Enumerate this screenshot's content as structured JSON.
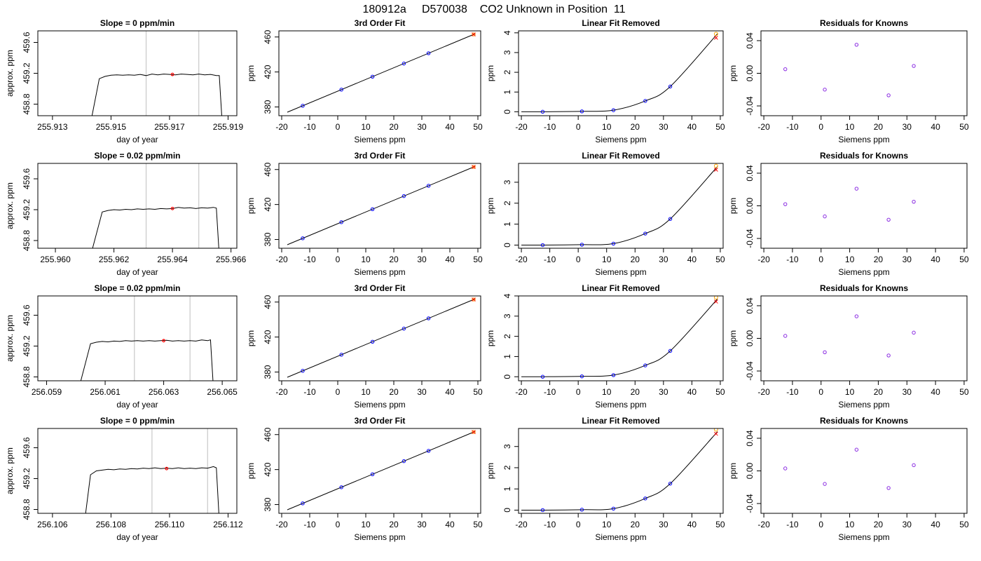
{
  "figure_title": "180912a     D570038    CO2 Unknown in Position  11",
  "colors": {
    "line": "#000000",
    "gridline": "#c8c8c8",
    "known_point": "#0000ff",
    "fit_point": "#ff0000",
    "orange_point": "#ffa500",
    "residual_point": "#8a2be2"
  },
  "chart_data": [
    {
      "type": "line",
      "row": 1,
      "kind": "time",
      "title": "Slope =  0  ppm/min",
      "xlabel": "day of year",
      "ylabel": "approx. ppm",
      "xlim": [
        255.9125,
        255.9193
      ],
      "ylim": [
        458.65,
        459.75
      ],
      "xticks": [
        255.913,
        255.915,
        255.917,
        255.919
      ],
      "xtick_labels": [
        "255.913",
        "255.915",
        "255.917",
        "255.919"
      ],
      "yticks": [
        458.8,
        459.2,
        459.6
      ],
      "ytick_labels": [
        "458.8",
        "459.2",
        "459.6"
      ],
      "vlines": [
        255.9162,
        255.918
      ],
      "level": 459.2,
      "marker": {
        "x": 255.9171,
        "y": 459.185
      },
      "trace": {
        "rise_start": 255.9143,
        "plateau_start": 255.9146,
        "fall_end": 255.9188,
        "points": [
          [
            255.9146,
            459.13
          ],
          [
            255.9148,
            459.16
          ],
          [
            255.915,
            459.175
          ],
          [
            255.9152,
            459.18
          ],
          [
            255.9154,
            459.175
          ],
          [
            255.9156,
            459.18
          ],
          [
            255.9158,
            459.175
          ],
          [
            255.916,
            459.185
          ],
          [
            255.9162,
            459.17
          ],
          [
            255.9164,
            459.19
          ],
          [
            255.9166,
            459.18
          ],
          [
            255.9168,
            459.19
          ],
          [
            255.917,
            459.185
          ],
          [
            255.9172,
            459.18
          ],
          [
            255.9174,
            459.19
          ],
          [
            255.9176,
            459.185
          ],
          [
            255.9178,
            459.18
          ],
          [
            255.918,
            459.19
          ],
          [
            255.9182,
            459.18
          ],
          [
            255.9184,
            459.185
          ],
          [
            255.9186,
            459.17
          ],
          [
            255.9187,
            459.17
          ]
        ]
      }
    },
    {
      "type": "line",
      "row": 2,
      "kind": "time",
      "title": "Slope =  0.02  ppm/min",
      "xlabel": "day of year",
      "ylabel": "approx. ppm",
      "xlim": [
        255.9594,
        255.9662
      ],
      "ylim": [
        458.7,
        459.8
      ],
      "xticks": [
        255.96,
        255.962,
        255.964,
        255.966
      ],
      "xtick_labels": [
        "255.960",
        "255.962",
        "255.964",
        "255.966"
      ],
      "yticks": [
        458.8,
        459.2,
        459.6
      ],
      "ytick_labels": [
        "458.8",
        "459.2",
        "459.6"
      ],
      "vlines": [
        255.9631,
        255.9649
      ],
      "level": 459.21,
      "marker": {
        "x": 255.964,
        "y": 459.215
      },
      "trace": {
        "rise_start": 255.9612,
        "plateau_start": 255.9616,
        "fall_end": 255.9656,
        "points": [
          [
            255.9616,
            459.17
          ],
          [
            255.9618,
            459.19
          ],
          [
            255.962,
            459.2
          ],
          [
            255.9622,
            459.195
          ],
          [
            255.9624,
            459.205
          ],
          [
            255.9626,
            459.2
          ],
          [
            255.9628,
            459.21
          ],
          [
            255.963,
            459.205
          ],
          [
            255.9632,
            459.21
          ],
          [
            255.9634,
            459.205
          ],
          [
            255.9636,
            459.215
          ],
          [
            255.9638,
            459.21
          ],
          [
            255.964,
            459.215
          ],
          [
            255.9642,
            459.23
          ],
          [
            255.9644,
            459.22
          ],
          [
            255.9646,
            459.225
          ],
          [
            255.9648,
            459.215
          ],
          [
            255.965,
            459.225
          ],
          [
            255.9652,
            459.22
          ],
          [
            255.9654,
            459.23
          ],
          [
            255.9655,
            459.22
          ]
        ]
      }
    },
    {
      "type": "line",
      "row": 3,
      "kind": "time",
      "title": "Slope =  0.02  ppm/min",
      "xlabel": "day of year",
      "ylabel": "approx. ppm",
      "xlim": [
        256.0587,
        256.0655
      ],
      "ylim": [
        458.75,
        459.85
      ],
      "xticks": [
        256.059,
        256.061,
        256.063,
        256.065
      ],
      "xtick_labels": [
        "256.059",
        "256.061",
        "256.063",
        "256.065"
      ],
      "yticks": [
        458.8,
        459.2,
        459.6
      ],
      "ytick_labels": [
        "458.8",
        "459.2",
        "459.6"
      ],
      "vlines": [
        256.062,
        256.0639
      ],
      "level": 459.27,
      "marker": {
        "x": 256.063,
        "y": 459.27
      },
      "trace": {
        "rise_start": 256.0601,
        "plateau_start": 256.0605,
        "fall_end": 256.0647,
        "points": [
          [
            256.0605,
            459.23
          ],
          [
            256.0607,
            459.25
          ],
          [
            256.0609,
            459.26
          ],
          [
            256.0611,
            459.255
          ],
          [
            256.0613,
            459.265
          ],
          [
            256.0615,
            459.26
          ],
          [
            256.0617,
            459.27
          ],
          [
            256.0619,
            459.265
          ],
          [
            256.0621,
            459.27
          ],
          [
            256.0623,
            459.265
          ],
          [
            256.0625,
            459.27
          ],
          [
            256.0627,
            459.265
          ],
          [
            256.0629,
            459.27
          ],
          [
            256.0631,
            459.275
          ],
          [
            256.0633,
            459.265
          ],
          [
            256.0635,
            459.27
          ],
          [
            256.0637,
            459.265
          ],
          [
            256.0639,
            459.27
          ],
          [
            256.0641,
            459.265
          ],
          [
            256.0643,
            459.28
          ],
          [
            256.0645,
            459.27
          ],
          [
            256.0646,
            459.28
          ]
        ]
      }
    },
    {
      "type": "line",
      "row": 4,
      "kind": "time",
      "title": "Slope =  0  ppm/min",
      "xlabel": "day of year",
      "ylabel": "approx. ppm",
      "xlim": [
        256.1055,
        256.1123
      ],
      "ylim": [
        458.75,
        459.85
      ],
      "xticks": [
        256.106,
        256.108,
        256.11,
        256.112
      ],
      "xtick_labels": [
        "256.106",
        "256.108",
        "256.110",
        "256.112"
      ],
      "yticks": [
        458.8,
        459.2,
        459.6
      ],
      "ytick_labels": [
        "458.8",
        "459.2",
        "459.6"
      ],
      "vlines": [
        256.1094,
        256.1113
      ],
      "level": 459.34,
      "marker": {
        "x": 256.1099,
        "y": 459.33
      },
      "trace": {
        "rise_start": 256.1071,
        "plateau_start": 256.1073,
        "fall_end": 256.1117,
        "points": [
          [
            256.1073,
            459.25
          ],
          [
            256.1075,
            459.3
          ],
          [
            256.1077,
            459.31
          ],
          [
            256.1079,
            459.32
          ],
          [
            256.1081,
            459.315
          ],
          [
            256.1083,
            459.325
          ],
          [
            256.1085,
            459.32
          ],
          [
            256.1087,
            459.33
          ],
          [
            256.1089,
            459.325
          ],
          [
            256.1091,
            459.335
          ],
          [
            256.1093,
            459.33
          ],
          [
            256.1095,
            459.34
          ],
          [
            256.1097,
            459.33
          ],
          [
            256.1099,
            459.335
          ],
          [
            256.1101,
            459.33
          ],
          [
            256.1103,
            459.34
          ],
          [
            256.1105,
            459.33
          ],
          [
            256.1107,
            459.335
          ],
          [
            256.1109,
            459.33
          ],
          [
            256.1111,
            459.34
          ],
          [
            256.1113,
            459.335
          ],
          [
            256.1115,
            459.355
          ],
          [
            256.1116,
            459.34
          ]
        ]
      }
    },
    {
      "type": "scatter",
      "row": 1,
      "kind": "fit",
      "title": "3rd Order Fit",
      "xlabel": "Siemens ppm",
      "ylabel": "ppm",
      "xlim": [
        -21,
        51
      ],
      "ylim": [
        370,
        467
      ],
      "xticks": [
        -20,
        -10,
        0,
        10,
        20,
        30,
        40,
        50
      ],
      "yticks": [
        380,
        420,
        460
      ],
      "known_x": [
        -12.5,
        1.3,
        12.4,
        23.6,
        32.4
      ],
      "unknown": {
        "x": 48.5
      },
      "fit_line": [
        [
          -18,
          374.0
        ],
        [
          49,
          463.6
        ]
      ]
    },
    {
      "type": "scatter",
      "row": 2,
      "kind": "fit",
      "title": "3rd Order Fit",
      "xlabel": "Siemens ppm",
      "ylabel": "ppm",
      "xlim": [
        -21,
        51
      ],
      "ylim": [
        370,
        467
      ],
      "xticks": [
        -20,
        -10,
        0,
        10,
        20,
        30,
        40,
        50
      ],
      "yticks": [
        380,
        420,
        460
      ],
      "known_x": [
        -12.5,
        1.3,
        12.4,
        23.6,
        32.4
      ],
      "unknown": {
        "x": 48.5
      },
      "fit_line": [
        [
          -18,
          374.0
        ],
        [
          49,
          463.6
        ]
      ]
    },
    {
      "type": "scatter",
      "row": 3,
      "kind": "fit",
      "title": "3rd Order Fit",
      "xlabel": "Siemens ppm",
      "ylabel": "ppm",
      "xlim": [
        -21,
        51
      ],
      "ylim": [
        370,
        467
      ],
      "xticks": [
        -20,
        -10,
        0,
        10,
        20,
        30,
        40,
        50
      ],
      "yticks": [
        380,
        420,
        460
      ],
      "known_x": [
        -12.5,
        1.3,
        12.4,
        23.6,
        32.4
      ],
      "unknown": {
        "x": 48.5
      },
      "fit_line": [
        [
          -18,
          374.0
        ],
        [
          49,
          463.6
        ]
      ]
    },
    {
      "type": "scatter",
      "row": 4,
      "kind": "fit",
      "title": "3rd Order Fit",
      "xlabel": "Siemens ppm",
      "ylabel": "ppm",
      "xlim": [
        -21,
        51
      ],
      "ylim": [
        370,
        467
      ],
      "xticks": [
        -20,
        -10,
        0,
        10,
        20,
        30,
        40,
        50
      ],
      "yticks": [
        380,
        420,
        460
      ],
      "known_x": [
        -12.5,
        1.3,
        12.4,
        23.6,
        32.4
      ],
      "unknown": {
        "x": 48.5
      },
      "fit_line": [
        [
          -18,
          374.0
        ],
        [
          49,
          463.6
        ]
      ]
    },
    {
      "type": "scatter",
      "row": 1,
      "kind": "linear-removed",
      "title": "Linear Fit Removed",
      "xlabel": "Siemens ppm",
      "ylabel": "ppm",
      "xlim": [
        -21,
        51
      ],
      "ylim": [
        -0.2,
        4.1
      ],
      "xticks": [
        -20,
        -10,
        0,
        10,
        20,
        30,
        40,
        50
      ],
      "yticks": [
        0,
        1,
        2,
        3,
        4
      ],
      "known": {
        "x": [
          -12.5,
          1.3,
          12.4,
          23.6,
          32.4
        ],
        "y": [
          0.0,
          0.02,
          0.08,
          0.55,
          1.28
        ]
      },
      "fit_point": {
        "x": 48.5,
        "y": 3.75
      },
      "orange_point": {
        "x": 48.5,
        "y": 3.95
      },
      "curve_end": [
        49,
        3.95
      ]
    },
    {
      "type": "scatter",
      "row": 2,
      "kind": "linear-removed",
      "title": "Linear Fit Removed",
      "xlabel": "Siemens ppm",
      "ylabel": "ppm",
      "xlim": [
        -21,
        51
      ],
      "ylim": [
        -0.15,
        3.9
      ],
      "xticks": [
        -20,
        -10,
        0,
        10,
        20,
        30,
        40,
        50
      ],
      "yticks": [
        0,
        1,
        2,
        3
      ],
      "known": {
        "x": [
          -12.5,
          1.3,
          12.4,
          23.6,
          32.4
        ],
        "y": [
          0.0,
          0.02,
          0.07,
          0.55,
          1.25
        ]
      },
      "fit_point": {
        "x": 48.5,
        "y": 3.6
      },
      "orange_point": {
        "x": 48.5,
        "y": 3.78
      },
      "curve_end": [
        49,
        3.75
      ]
    },
    {
      "type": "scatter",
      "row": 3,
      "kind": "linear-removed",
      "title": "Linear Fit Removed",
      "xlabel": "Siemens ppm",
      "ylabel": "ppm",
      "xlim": [
        -21,
        51
      ],
      "ylim": [
        -0.2,
        4.0
      ],
      "xticks": [
        -20,
        -10,
        0,
        10,
        20,
        30,
        40,
        50
      ],
      "yticks": [
        0,
        1,
        2,
        3,
        4
      ],
      "known": {
        "x": [
          -12.5,
          1.3,
          12.4,
          23.6,
          32.4
        ],
        "y": [
          0.0,
          0.02,
          0.08,
          0.56,
          1.28
        ]
      },
      "fit_point": {
        "x": 48.5,
        "y": 3.72
      },
      "orange_point": {
        "x": 48.5,
        "y": 3.92
      },
      "curve_end": [
        49,
        3.85
      ]
    },
    {
      "type": "scatter",
      "row": 4,
      "kind": "linear-removed",
      "title": "Linear Fit Removed",
      "xlabel": "Siemens ppm",
      "ylabel": "ppm",
      "xlim": [
        -21,
        51
      ],
      "ylim": [
        -0.15,
        3.85
      ],
      "xticks": [
        -20,
        -10,
        0,
        10,
        20,
        30,
        40,
        50
      ],
      "yticks": [
        0,
        1,
        2,
        3
      ],
      "known": {
        "x": [
          -12.5,
          1.3,
          12.4,
          23.6,
          32.4
        ],
        "y": [
          0.0,
          0.02,
          0.07,
          0.55,
          1.25
        ]
      },
      "fit_point": {
        "x": 48.5,
        "y": 3.6
      },
      "orange_point": {
        "x": 48.5,
        "y": 3.8
      },
      "curve_end": [
        49,
        3.7
      ]
    },
    {
      "type": "scatter",
      "row": 1,
      "kind": "residual",
      "title": "Residuals for Knowns",
      "xlabel": "Siemens ppm",
      "ylabel": "ppm",
      "xlim": [
        -21,
        51
      ],
      "ylim": [
        -0.052,
        0.052
      ],
      "xticks": [
        -20,
        -10,
        0,
        10,
        20,
        30,
        40,
        50
      ],
      "yticks": [
        -0.04,
        0.0,
        0.04
      ],
      "ytick_labels": [
        "-0.04",
        "0.00",
        "0.04"
      ],
      "x": [
        -12.5,
        1.3,
        12.4,
        23.6,
        32.4
      ],
      "y": [
        0.005,
        -0.02,
        0.035,
        -0.027,
        0.009
      ]
    },
    {
      "type": "scatter",
      "row": 2,
      "kind": "residual",
      "title": "Residuals for Knowns",
      "xlabel": "Siemens ppm",
      "ylabel": "ppm",
      "xlim": [
        -21,
        51
      ],
      "ylim": [
        -0.052,
        0.052
      ],
      "xticks": [
        -20,
        -10,
        0,
        10,
        20,
        30,
        40,
        50
      ],
      "yticks": [
        -0.04,
        0.0,
        0.04
      ],
      "ytick_labels": [
        "-0.04",
        "0.00",
        "0.04"
      ],
      "x": [
        -12.5,
        1.3,
        12.4,
        23.6,
        32.4
      ],
      "y": [
        0.002,
        -0.013,
        0.021,
        -0.017,
        0.005
      ]
    },
    {
      "type": "scatter",
      "row": 3,
      "kind": "residual",
      "title": "Residuals for Knowns",
      "xlabel": "Siemens ppm",
      "ylabel": "ppm",
      "xlim": [
        -21,
        51
      ],
      "ylim": [
        -0.052,
        0.052
      ],
      "xticks": [
        -20,
        -10,
        0,
        10,
        20,
        30,
        40,
        50
      ],
      "yticks": [
        -0.04,
        0.0,
        0.04
      ],
      "ytick_labels": [
        "-0.04",
        "0.00",
        "0.04"
      ],
      "x": [
        -12.5,
        1.3,
        12.4,
        23.6,
        32.4
      ],
      "y": [
        0.003,
        -0.017,
        0.027,
        -0.021,
        0.007
      ]
    },
    {
      "type": "scatter",
      "row": 4,
      "kind": "residual",
      "title": "Residuals for Knowns",
      "xlabel": "Siemens ppm",
      "ylabel": "ppm",
      "xlim": [
        -21,
        51
      ],
      "ylim": [
        -0.052,
        0.052
      ],
      "xticks": [
        -20,
        -10,
        0,
        10,
        20,
        30,
        40,
        50
      ],
      "yticks": [
        -0.04,
        0.0,
        0.04
      ],
      "ytick_labels": [
        "-0.04",
        "0.00",
        "0.04"
      ],
      "x": [
        -12.5,
        1.3,
        12.4,
        23.6,
        32.4
      ],
      "y": [
        0.003,
        -0.016,
        0.026,
        -0.021,
        0.007
      ]
    }
  ]
}
